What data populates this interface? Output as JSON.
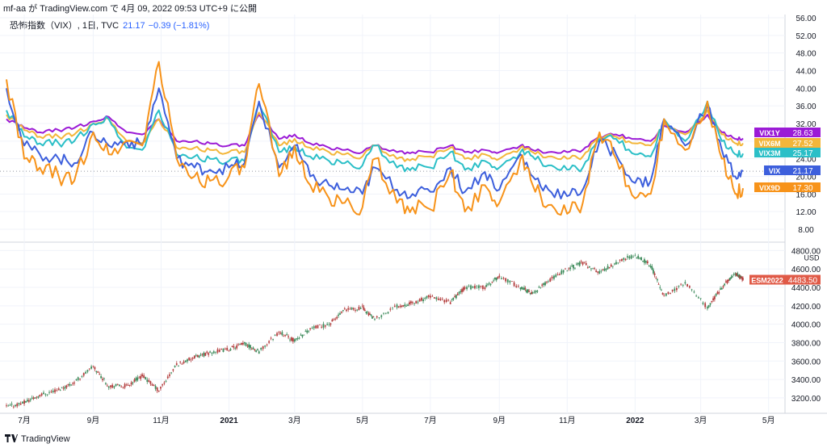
{
  "header": {
    "text": "mf-aa が TradingView.com で 4月 09, 2022 09:53 UTC+9 に公開"
  },
  "legend": {
    "symbol": "恐怖指数（VIX）, 1日, TVC",
    "value": "21.17",
    "change": "−0.39 (−1.81%)"
  },
  "footer": {
    "logo_icon": "tradingview-logo-icon",
    "label": "TradingView"
  },
  "colors": {
    "VIX": "#3d5fdc",
    "VIX9D": "#f7931a",
    "VIX3M": "#2bbfc7",
    "VIX6M": "#f3b63a",
    "VIX1Y": "#9b1bd6",
    "up_candle": "#3c8a5a",
    "down_candle": "#b23b3b",
    "es_label": "#e05a47"
  },
  "chart_data": [
    {
      "type": "line",
      "title": "恐怖指数（VIX）, 1日, TVC",
      "x": [
        "2020-06-15",
        "2020-07-01",
        "2020-07-15",
        "2020-08-01",
        "2020-08-15",
        "2020-09-01",
        "2020-09-15",
        "2020-10-01",
        "2020-10-15",
        "2020-10-30",
        "2020-11-15",
        "2020-12-01",
        "2020-12-15",
        "2021-01-01",
        "2021-01-15",
        "2021-01-28",
        "2021-02-15",
        "2021-03-01",
        "2021-03-15",
        "2021-04-01",
        "2021-04-15",
        "2021-05-01",
        "2021-05-12",
        "2021-06-01",
        "2021-06-15",
        "2021-07-01",
        "2021-07-19",
        "2021-08-01",
        "2021-08-19",
        "2021-09-01",
        "2021-09-20",
        "2021-10-01",
        "2021-10-15",
        "2021-11-01",
        "2021-11-15",
        "2021-11-30",
        "2021-12-15",
        "2022-01-01",
        "2022-01-15",
        "2022-01-27",
        "2022-02-15",
        "2022-03-07",
        "2022-03-20",
        "2022-04-01",
        "2022-04-08"
      ],
      "ylim": [
        8,
        56
      ],
      "yticks": [
        8,
        12,
        16,
        20,
        24,
        28,
        32,
        36,
        40,
        44,
        48,
        52,
        56
      ],
      "xtick_labels": [
        {
          "date": "2020-07-01",
          "label": "7月"
        },
        {
          "date": "2020-09-01",
          "label": "9月"
        },
        {
          "date": "2020-11-01",
          "label": "11月"
        },
        {
          "date": "2021-01-01",
          "label": "2021"
        },
        {
          "date": "2021-03-01",
          "label": "3月"
        },
        {
          "date": "2021-05-01",
          "label": "5月"
        },
        {
          "date": "2021-07-01",
          "label": "7月"
        },
        {
          "date": "2021-09-01",
          "label": "9月"
        },
        {
          "date": "2021-11-01",
          "label": "11月"
        },
        {
          "date": "2022-01-01",
          "label": "2022"
        },
        {
          "date": "2022-03-01",
          "label": "3月"
        },
        {
          "date": "2022-05-01",
          "label": "5月"
        }
      ],
      "series": [
        {
          "name": "VIX1Y",
          "last_label": "28.63",
          "values": [
            33,
            31,
            30,
            30.5,
            31,
            32.5,
            33.5,
            30,
            29.5,
            33,
            28,
            28,
            27.5,
            27,
            27,
            34,
            28.5,
            29.5,
            27.5,
            26.5,
            26,
            25.5,
            27,
            25.5,
            25.5,
            25.5,
            27,
            25.5,
            26,
            25.5,
            27,
            26,
            25.5,
            25.5,
            26,
            29,
            29.5,
            28.5,
            28,
            31.5,
            30,
            34,
            30,
            28.5,
            28.63
          ]
        },
        {
          "name": "VIX6M",
          "last_label": "27.52",
          "values": [
            34,
            30.5,
            29,
            29,
            29.5,
            32,
            33,
            28,
            27.5,
            33,
            26.5,
            26.5,
            26,
            25.5,
            25.5,
            34.5,
            27,
            28.5,
            26.5,
            25.5,
            25,
            24.5,
            27,
            24,
            24,
            24.5,
            26.5,
            24,
            25,
            24,
            26.5,
            25.5,
            24.5,
            24,
            24.5,
            29,
            29,
            27.5,
            27,
            32,
            29.5,
            35,
            29.5,
            27.5,
            27.52
          ]
        },
        {
          "name": "VIX3M",
          "last_label": "25.17",
          "values": [
            35,
            29,
            27.5,
            27.5,
            28,
            32,
            33,
            26.5,
            26,
            35,
            25,
            24.5,
            24,
            23.5,
            23.5,
            36.5,
            25.5,
            27,
            24.5,
            23.5,
            23,
            22.5,
            27,
            22,
            22,
            22,
            25.5,
            21.5,
            23.5,
            22,
            25.5,
            24.5,
            22.5,
            21.5,
            22,
            28.5,
            28.5,
            25,
            24.5,
            33,
            28,
            37,
            28,
            25,
            25.17
          ]
        },
        {
          "name": "VIX",
          "last_label": "21.17",
          "values": [
            40,
            27,
            25,
            24,
            23,
            30,
            27,
            28,
            27,
            40,
            24,
            22,
            21.5,
            22,
            23,
            37,
            22,
            27,
            20,
            18,
            17,
            16,
            22,
            17,
            16,
            16.5,
            22,
            16.5,
            21,
            17,
            25,
            20,
            17,
            15.5,
            17,
            28,
            25,
            18.5,
            19,
            33,
            27,
            36,
            26,
            20,
            21.17
          ]
        },
        {
          "name": "VIX9D",
          "last_label": "17.30",
          "values": [
            42,
            24,
            22,
            20,
            19,
            30,
            25,
            28,
            27,
            46,
            24,
            20,
            19,
            20,
            22,
            41,
            20,
            27,
            18,
            15,
            14,
            13,
            24,
            14,
            13,
            12.5,
            21,
            12,
            18,
            14,
            24,
            18,
            13.5,
            11.5,
            14,
            30,
            24,
            15,
            16,
            33,
            26,
            37,
            24,
            16,
            17.3
          ]
        }
      ]
    },
    {
      "type": "candlestick",
      "name": "ESM2022",
      "last_label": "4483.50",
      "unit": "USD",
      "ylim": [
        3050,
        4830
      ],
      "yticks": [
        3200,
        3400,
        3600,
        3800,
        4000,
        4200,
        4400,
        4600,
        4800
      ],
      "ytick_labels": [
        "3200.00",
        "3400.00",
        "3600.00",
        "3800.00",
        "4000.00",
        "4200.00",
        "4400.00",
        "4600.00",
        "4800.00"
      ],
      "x": [
        "2020-06-15",
        "2020-07-01",
        "2020-07-15",
        "2020-08-01",
        "2020-08-15",
        "2020-09-01",
        "2020-09-15",
        "2020-10-01",
        "2020-10-15",
        "2020-10-30",
        "2020-11-15",
        "2020-12-01",
        "2020-12-15",
        "2021-01-01",
        "2021-01-15",
        "2021-01-28",
        "2021-02-15",
        "2021-03-01",
        "2021-03-15",
        "2021-04-01",
        "2021-04-15",
        "2021-05-01",
        "2021-05-12",
        "2021-06-01",
        "2021-06-15",
        "2021-07-01",
        "2021-07-19",
        "2021-08-01",
        "2021-08-19",
        "2021-09-01",
        "2021-09-20",
        "2021-10-01",
        "2021-10-15",
        "2021-11-01",
        "2021-11-15",
        "2021-11-30",
        "2021-12-15",
        "2022-01-01",
        "2022-01-15",
        "2022-01-27",
        "2022-02-15",
        "2022-03-07",
        "2022-03-20",
        "2022-04-01",
        "2022-04-08"
      ],
      "close": [
        3100,
        3150,
        3230,
        3290,
        3370,
        3540,
        3330,
        3330,
        3440,
        3280,
        3560,
        3640,
        3690,
        3730,
        3790,
        3700,
        3920,
        3820,
        3950,
        4000,
        4150,
        4180,
        4050,
        4200,
        4230,
        4300,
        4240,
        4400,
        4400,
        4520,
        4400,
        4330,
        4470,
        4600,
        4670,
        4560,
        4670,
        4750,
        4640,
        4300,
        4450,
        4180,
        4400,
        4550,
        4483.5
      ]
    }
  ]
}
